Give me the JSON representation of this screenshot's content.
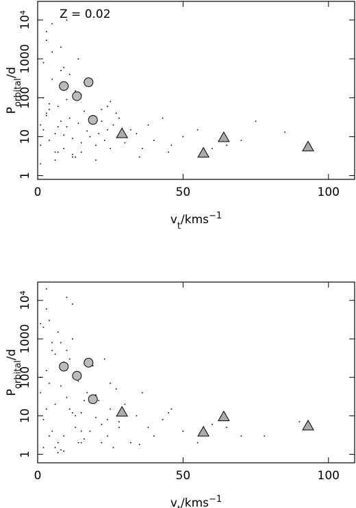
{
  "chart_data": [
    {
      "type": "scatter",
      "annotation": "Z = 0.02",
      "xlabel": {
        "base": "v",
        "sub": "t",
        "rest": "/kms",
        "sup": "−1"
      },
      "ylabel": {
        "base": "P",
        "sub": "orbital",
        "rest": "/d"
      },
      "log_y": true,
      "xlim": [
        0,
        109
      ],
      "ylim": [
        0.8,
        30000
      ],
      "xticks": [
        0,
        50,
        100
      ],
      "yticks": [
        1,
        10,
        100,
        1000,
        {
          "value": 10000,
          "label": "10⁴"
        }
      ],
      "points": {
        "color": "#000000",
        "x": [
          1,
          2,
          3,
          4,
          5,
          6,
          7,
          8,
          9,
          10,
          11,
          12,
          13,
          14,
          15,
          16,
          17,
          18,
          19,
          20,
          21,
          22,
          23,
          24,
          25,
          26,
          27,
          28,
          30,
          32,
          34,
          36,
          38,
          40,
          43,
          46,
          50,
          55,
          60,
          70,
          2,
          3,
          5,
          6,
          8,
          9,
          11,
          12,
          14,
          16,
          1,
          4,
          7,
          10,
          13,
          15,
          18,
          22,
          25,
          28,
          3,
          5,
          8,
          12,
          20,
          35,
          45,
          65,
          75,
          85,
          1,
          2,
          6,
          10,
          15,
          4,
          7,
          3,
          9,
          24
        ],
        "y": [
          20,
          15,
          40,
          8,
          300,
          12,
          60,
          25,
          5,
          18,
          30,
          9,
          150,
          22,
          7,
          45,
          14,
          10,
          35,
          6,
          12,
          25,
          8,
          15,
          5,
          20,
          40,
          10,
          7,
          15,
          12,
          5,
          20,
          8,
          30,
          6,
          10,
          15,
          5,
          8,
          800,
          3000,
          1500,
          4,
          2000,
          600,
          400,
          3,
          1000,
          250,
          6,
          70,
          4,
          90,
          3,
          120,
          200,
          50,
          80,
          30,
          5000,
          8000,
          500,
          3.5,
          2.5,
          3,
          4,
          6,
          25,
          13,
          2,
          100,
          2.5,
          10000,
          4,
          50,
          18,
          35,
          11,
          60
        ]
      },
      "circles": {
        "color": "#bbbbbb",
        "x": [
          9,
          13.5,
          17.5,
          19
        ],
        "y": [
          200,
          110,
          250,
          27
        ]
      },
      "triangles": {
        "color": "#aaaaaa",
        "x": [
          29,
          57,
          64,
          93
        ],
        "y": [
          12,
          3.8,
          9.5,
          5.5
        ]
      }
    },
    {
      "type": "scatter",
      "xlabel": {
        "base": "v",
        "sub": "t",
        "rest": "/kms",
        "sup": "−1"
      },
      "ylabel": {
        "base": "P",
        "sub": "orbital",
        "rest": "/d"
      },
      "log_y": true,
      "xlim": [
        0,
        109
      ],
      "ylim": [
        0.6,
        30000
      ],
      "xticks": [
        0,
        50,
        100
      ],
      "yticks": [
        1,
        10,
        100,
        1000,
        {
          "value": 10000,
          "label": "10⁴"
        }
      ],
      "points": {
        "color": "#000000",
        "x": [
          1,
          2,
          3,
          4,
          5,
          6,
          7,
          8,
          9,
          10,
          11,
          12,
          13,
          14,
          15,
          16,
          17,
          18,
          19,
          20,
          21,
          22,
          23,
          24,
          25,
          26,
          27,
          28,
          30,
          32,
          34,
          36,
          38,
          40,
          43,
          46,
          50,
          55,
          60,
          70,
          2,
          3,
          5,
          6,
          8,
          9,
          11,
          12,
          14,
          16,
          1,
          4,
          7,
          10,
          13,
          15,
          18,
          22,
          25,
          28,
          3,
          5,
          8,
          12,
          20,
          35,
          45,
          65,
          78,
          90,
          1,
          2,
          6,
          10,
          15,
          4,
          7,
          3,
          9,
          24
        ],
        "y": [
          40,
          8,
          150,
          3,
          500,
          20,
          2,
          60,
          1.2,
          30,
          15,
          1000,
          5,
          80,
          12,
          2.5,
          40,
          4,
          200,
          9,
          25,
          6,
          300,
          3,
          15,
          1.5,
          50,
          7,
          20,
          2,
          10,
          40,
          5,
          3,
          8,
          15,
          4,
          2,
          6,
          3,
          2000,
          6000,
          4,
          1.5,
          800,
          3,
          300,
          12,
          2,
          25,
          100,
          3000,
          1.1,
          500,
          10,
          4,
          25,
          2,
          70,
          5,
          20000,
          800,
          1.3,
          8000,
          35,
          1.8,
          12,
          5,
          3,
          7,
          2500,
          1.5,
          400,
          12000,
          2,
          70,
          1500,
          15,
          250,
          8
        ]
      },
      "circles": {
        "color": "#bbbbbb",
        "x": [
          9,
          13.5,
          17.5,
          19
        ],
        "y": [
          190,
          110,
          240,
          27
        ]
      },
      "triangles": {
        "color": "#aaaaaa",
        "x": [
          29,
          57,
          64,
          93
        ],
        "y": [
          12.5,
          3.8,
          9.5,
          5.5
        ]
      }
    }
  ]
}
